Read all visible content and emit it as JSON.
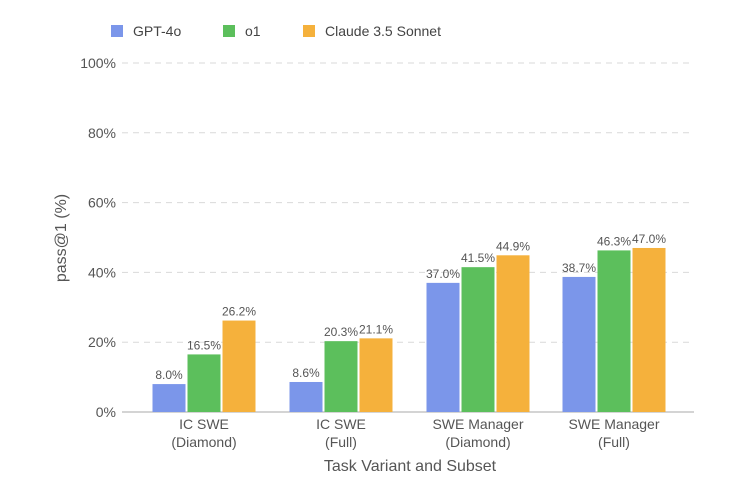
{
  "chart_data": {
    "type": "bar",
    "xlabel": "Task Variant and Subset",
    "ylabel": "pass@1 (%)",
    "ylim": [
      0,
      100
    ],
    "yticks": [
      0,
      20,
      40,
      60,
      80,
      100
    ],
    "ytick_suffix": "%",
    "grid": true,
    "legend_position": "top-left",
    "categories": [
      [
        "IC SWE",
        "(Diamond)"
      ],
      [
        "IC SWE",
        "(Full)"
      ],
      [
        "SWE Manager",
        "(Diamond)"
      ],
      [
        "SWE Manager",
        "(Full)"
      ]
    ],
    "series": [
      {
        "name": "GPT-4o",
        "color": "#7b96ea",
        "values": [
          8.0,
          8.6,
          37.0,
          38.7
        ]
      },
      {
        "name": "o1",
        "color": "#5cbf5c",
        "values": [
          16.5,
          20.3,
          41.5,
          46.3
        ]
      },
      {
        "name": "Claude 3.5 Sonnet",
        "color": "#f5b13c",
        "values": [
          26.2,
          21.1,
          44.9,
          47.0
        ]
      }
    ]
  }
}
